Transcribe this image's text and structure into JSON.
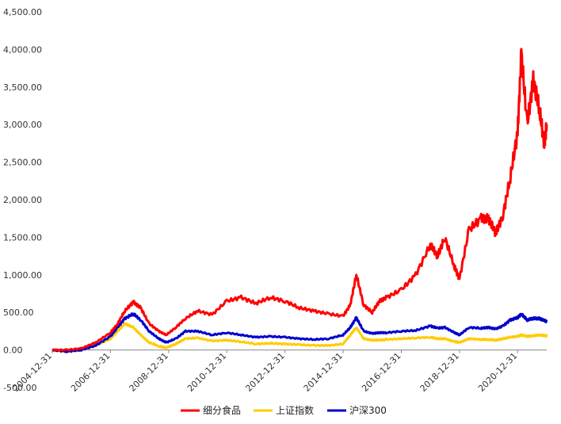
{
  "chart_data": {
    "type": "line",
    "title": "",
    "xlabel": "",
    "ylabel": "",
    "ylim": [
      -500,
      4500
    ],
    "yticks": [
      -500,
      0,
      500,
      1000,
      1500,
      2000,
      2500,
      3000,
      3500,
      4000,
      4500
    ],
    "ytick_labels": [
      "-500.00",
      "0.00",
      "500.00",
      "1,000.00",
      "1,500.00",
      "2,000.00",
      "2,500.00",
      "3,000.00",
      "3,500.00",
      "4,000.00",
      "4,500.00"
    ],
    "xlim": [
      "2004-12-31",
      "2021-12-31"
    ],
    "xtick_labels": [
      "2004-12-31",
      "2006-12-31",
      "2008-12-31",
      "2010-12-31",
      "2012-12-31",
      "2014-12-31",
      "2016-12-31",
      "2018-12-31",
      "2020-12-31"
    ],
    "grid": false,
    "legend_position": "bottom",
    "x": [
      "2004-12-31",
      "2005-06-30",
      "2005-12-31",
      "2006-06-30",
      "2006-12-31",
      "2007-03-31",
      "2007-06-30",
      "2007-10-15",
      "2008-01-15",
      "2008-04-30",
      "2008-08-31",
      "2008-11-30",
      "2009-03-31",
      "2009-07-31",
      "2009-12-31",
      "2010-06-30",
      "2010-12-31",
      "2011-06-30",
      "2011-12-31",
      "2012-06-30",
      "2012-12-31",
      "2013-06-30",
      "2013-12-31",
      "2014-06-30",
      "2014-12-31",
      "2015-03-31",
      "2015-06-15",
      "2015-09-15",
      "2015-12-31",
      "2016-03-31",
      "2016-06-30",
      "2016-12-31",
      "2017-06-30",
      "2017-12-31",
      "2018-03-31",
      "2018-06-30",
      "2018-10-31",
      "2018-12-31",
      "2019-04-30",
      "2019-09-30",
      "2019-12-31",
      "2020-03-31",
      "2020-06-30",
      "2020-09-30",
      "2020-12-31",
      "2021-02-15",
      "2021-04-30",
      "2021-07-15",
      "2021-09-30",
      "2021-11-30",
      "2021-12-31"
    ],
    "series": [
      {
        "name": "细分食品",
        "color": "#ff0000",
        "values": [
          0,
          0,
          20,
          100,
          230,
          350,
          520,
          640,
          560,
          350,
          250,
          200,
          300,
          420,
          520,
          470,
          650,
          700,
          620,
          700,
          650,
          560,
          520,
          480,
          450,
          600,
          1000,
          600,
          500,
          650,
          700,
          800,
          1000,
          1400,
          1250,
          1500,
          1100,
          950,
          1600,
          1750,
          1750,
          1550,
          1800,
          2300,
          2900,
          3950,
          3000,
          3600,
          3200,
          2750,
          3000
        ]
      },
      {
        "name": "上证指数",
        "color": "#ffcc00",
        "values": [
          0,
          -20,
          0,
          60,
          150,
          250,
          350,
          300,
          200,
          100,
          50,
          30,
          80,
          150,
          160,
          120,
          130,
          110,
          80,
          90,
          80,
          70,
          60,
          60,
          80,
          200,
          300,
          150,
          130,
          130,
          140,
          150,
          160,
          170,
          150,
          150,
          110,
          100,
          150,
          140,
          140,
          130,
          150,
          170,
          180,
          200,
          180,
          190,
          200,
          190,
          190
        ]
      },
      {
        "name": "沪深300",
        "color": "#0000cc",
        "values": [
          0,
          -20,
          0,
          60,
          180,
          300,
          420,
          480,
          400,
          250,
          150,
          100,
          150,
          250,
          250,
          200,
          230,
          200,
          170,
          180,
          170,
          150,
          140,
          150,
          200,
          300,
          430,
          250,
          220,
          230,
          230,
          250,
          260,
          320,
          290,
          300,
          230,
          200,
          300,
          290,
          300,
          280,
          320,
          400,
          430,
          480,
          400,
          420,
          420,
          390,
          380
        ]
      }
    ]
  }
}
